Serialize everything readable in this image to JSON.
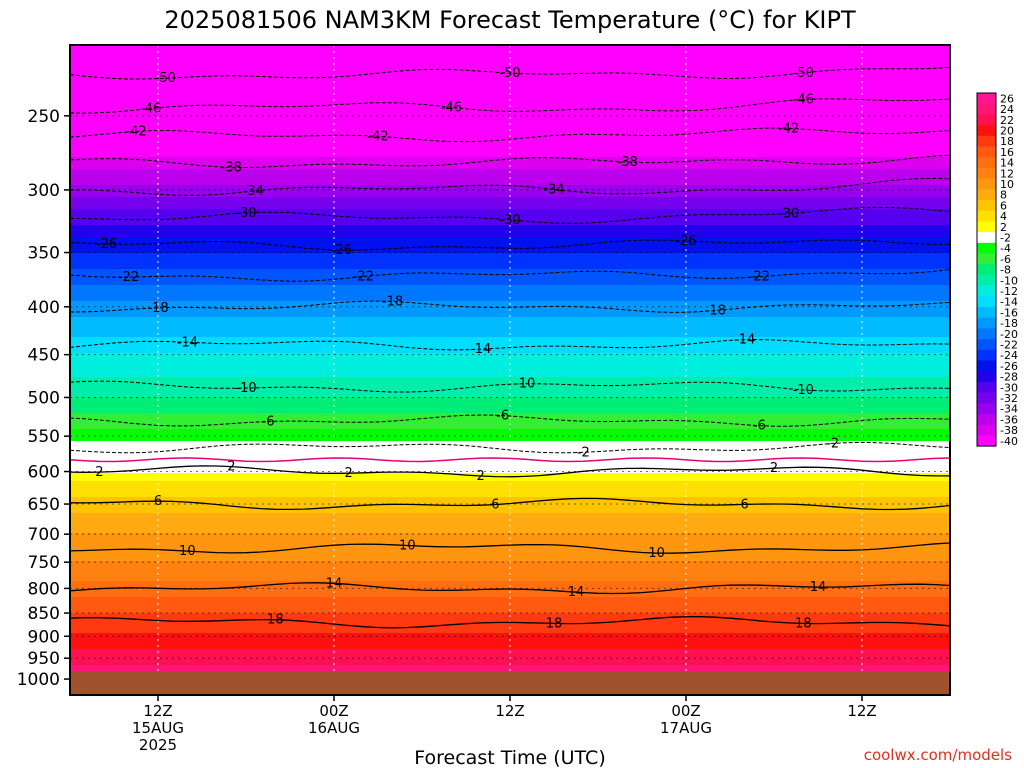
{
  "chart_data": {
    "type": "heatmap",
    "title": "2025081506 NAM3KM Forecast Temperature (°C) for KIPT",
    "xlabel": "Forecast Time (UTC)",
    "ylabel": "",
    "credit": "coolwx.com/models",
    "y_scale": "log",
    "ylim": [
      210,
      1040
    ],
    "y_ticks": [
      250,
      300,
      350,
      400,
      450,
      500,
      550,
      600,
      650,
      700,
      750,
      800,
      850,
      900,
      950,
      1000
    ],
    "x_ticks": [
      {
        "l1": "12Z",
        "l2": "15AUG",
        "l3": "2025",
        "hour": 6
      },
      {
        "l1": "00Z",
        "l2": "16AUG",
        "l3": "",
        "hour": 18
      },
      {
        "l1": "12Z",
        "l2": "",
        "l3": "",
        "hour": 30
      },
      {
        "l1": "00Z",
        "l2": "17AUG",
        "l3": "",
        "hour": 42
      },
      {
        "l1": "12Z",
        "l2": "",
        "l3": "",
        "hour": 54
      }
    ],
    "xlim": [
      0,
      60
    ],
    "colorbar": {
      "labels": [
        "26",
        "24",
        "22",
        "20",
        "18",
        "16",
        "14",
        "12",
        "10",
        "8",
        "6",
        "4",
        "2",
        "-2",
        "-4",
        "-6",
        "-8",
        "-10",
        "-12",
        "-14",
        "-16",
        "-18",
        "-20",
        "-22",
        "-24",
        "-26",
        "-28",
        "-30",
        "-32",
        "-34",
        "-36",
        "-38",
        "-40"
      ],
      "colors": [
        "#ff1493",
        "#ff1478",
        "#ff1050",
        "#ff1010",
        "#ff3a10",
        "#ff5a10",
        "#ff6e10",
        "#ff8210",
        "#ff9610",
        "#ffaa10",
        "#ffc400",
        "#ffe000",
        "#ffff00",
        "#ffffff",
        "#00ff00",
        "#33ee33",
        "#00ee77",
        "#00eeaa",
        "#00eedd",
        "#00ddff",
        "#00bbff",
        "#0099ff",
        "#0077ff",
        "#0055ff",
        "#0033ff",
        "#0011ee",
        "#2200ee",
        "#5500ee",
        "#7700ee",
        "#9900ee",
        "#bb00ee",
        "#dd00ee",
        "#ff00ff"
      ]
    },
    "profile": [
      {
        "p": 200,
        "t": -56
      },
      {
        "p": 250,
        "t": -45
      },
      {
        "p": 300,
        "t": -34
      },
      {
        "p": 350,
        "t": -25
      },
      {
        "p": 400,
        "t": -18
      },
      {
        "p": 450,
        "t": -13
      },
      {
        "p": 500,
        "t": -9
      },
      {
        "p": 550,
        "t": -4
      },
      {
        "p": 600,
        "t": 2
      },
      {
        "p": 650,
        "t": 6
      },
      {
        "p": 700,
        "t": 9
      },
      {
        "p": 750,
        "t": 11
      },
      {
        "p": 800,
        "t": 14
      },
      {
        "p": 850,
        "t": 17
      },
      {
        "p": 900,
        "t": 19.5
      },
      {
        "p": 950,
        "t": 22
      },
      {
        "p": 1000,
        "t": 26
      }
    ],
    "contours": [
      {
        "t": -50,
        "labels": [
          {
            "text": "-50",
            "hour": 6.5
          },
          {
            "text": "-50",
            "hour": 30
          },
          {
            "text": "-50",
            "hour": 50
          }
        ]
      },
      {
        "t": -46,
        "labels": [
          {
            "text": "-46",
            "hour": 5.5
          },
          {
            "text": "-46",
            "hour": 26
          },
          {
            "text": "-46",
            "hour": 50
          }
        ]
      },
      {
        "t": -42,
        "labels": [
          {
            "text": "-42",
            "hour": 4.5
          },
          {
            "text": "-42",
            "hour": 21
          },
          {
            "text": "-42",
            "hour": 49
          }
        ]
      },
      {
        "t": -38,
        "labels": [
          {
            "text": "-38",
            "hour": 11
          },
          {
            "text": "-38",
            "hour": 38
          }
        ]
      },
      {
        "t": -34,
        "labels": [
          {
            "text": "-34",
            "hour": 12.5
          },
          {
            "text": "-34",
            "hour": 33
          }
        ]
      },
      {
        "t": -30,
        "labels": [
          {
            "text": "-30",
            "hour": 12
          },
          {
            "text": "-30",
            "hour": 30
          },
          {
            "text": "-30",
            "hour": 49
          }
        ]
      },
      {
        "t": -26,
        "labels": [
          {
            "text": "-26",
            "hour": 2.5
          },
          {
            "text": "-26",
            "hour": 18.5
          },
          {
            "text": "-26",
            "hour": 42
          }
        ]
      },
      {
        "t": -22,
        "labels": [
          {
            "text": "-22",
            "hour": 4
          },
          {
            "text": "-22",
            "hour": 20
          },
          {
            "text": "-22",
            "hour": 47
          }
        ]
      },
      {
        "t": -18,
        "labels": [
          {
            "text": "-18",
            "hour": 6
          },
          {
            "text": "-18",
            "hour": 22
          },
          {
            "text": "-18",
            "hour": 44
          }
        ]
      },
      {
        "t": -14,
        "labels": [
          {
            "text": "-14",
            "hour": 8
          },
          {
            "text": "-14",
            "hour": 28
          },
          {
            "text": "-14",
            "hour": 46
          }
        ]
      },
      {
        "t": -10,
        "labels": [
          {
            "text": "-10",
            "hour": 12
          },
          {
            "text": "-10",
            "hour": 31
          },
          {
            "text": "-10",
            "hour": 50
          }
        ]
      },
      {
        "t": -6,
        "labels": [
          {
            "text": "-6",
            "hour": 13.5
          },
          {
            "text": "-6",
            "hour": 29.5
          },
          {
            "text": "-6",
            "hour": 47
          }
        ]
      },
      {
        "t": -2,
        "labels": [
          {
            "text": "-2",
            "hour": 35
          },
          {
            "text": "-2",
            "hour": 52
          }
        ]
      },
      {
        "t": 2,
        "labels": [
          {
            "text": "2",
            "hour": 2
          },
          {
            "text": "2",
            "hour": 19
          },
          {
            "text": "2",
            "hour": 11
          },
          {
            "text": "2",
            "hour": 28
          },
          {
            "text": "2",
            "hour": 48
          }
        ]
      },
      {
        "t": 6,
        "labels": [
          {
            "text": "6",
            "hour": 6
          },
          {
            "text": "6",
            "hour": 29
          },
          {
            "text": "6",
            "hour": 46
          }
        ]
      },
      {
        "t": 10,
        "labels": [
          {
            "text": "10",
            "hour": 8
          },
          {
            "text": "10",
            "hour": 23
          },
          {
            "text": "10",
            "hour": 40
          }
        ]
      },
      {
        "t": 14,
        "labels": [
          {
            "text": "14",
            "hour": 18
          },
          {
            "text": "14",
            "hour": 34.5
          },
          {
            "text": "14",
            "hour": 51
          }
        ]
      },
      {
        "t": 18,
        "labels": [
          {
            "text": "18",
            "hour": 14
          },
          {
            "text": "18",
            "hour": 33
          },
          {
            "text": "18",
            "hour": 50
          }
        ]
      }
    ]
  }
}
